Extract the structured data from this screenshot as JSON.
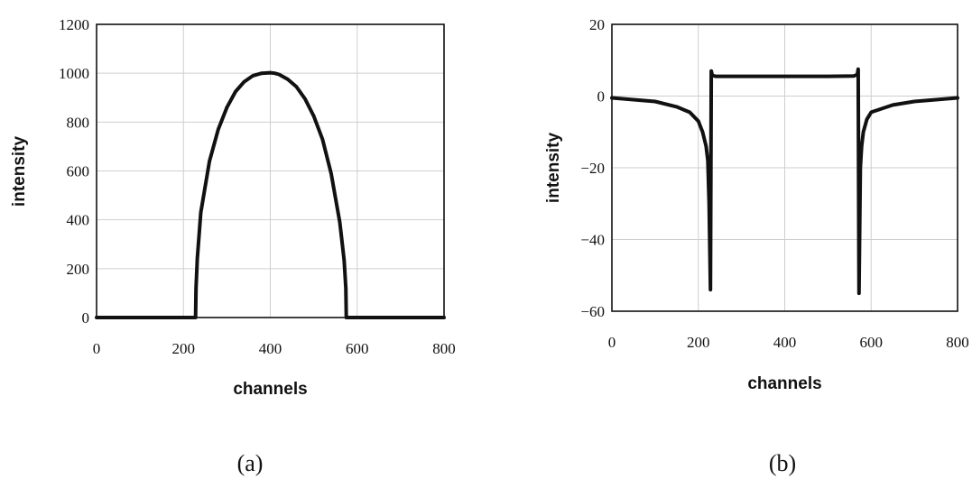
{
  "chart_data": [
    {
      "type": "line",
      "panel_label": "(a)",
      "xlabel": "channels",
      "ylabel": "intensity",
      "xlim": [
        0,
        800
      ],
      "ylim": [
        0,
        1200
      ],
      "xticks": [
        0,
        200,
        400,
        600,
        800
      ],
      "yticks": [
        0,
        200,
        400,
        600,
        800,
        1000,
        1200
      ],
      "grid": true,
      "series": [
        {
          "x": [
            0,
            100,
            200,
            228,
            229,
            232,
            240,
            260,
            280,
            300,
            320,
            340,
            360,
            380,
            400,
            410,
            420,
            440,
            460,
            480,
            500,
            520,
            540,
            560,
            570,
            574,
            575,
            600,
            700,
            800
          ],
          "y": [
            0,
            0,
            0,
            0,
            120,
            240,
            430,
            640,
            770,
            860,
            925,
            965,
            990,
            1000,
            1002,
            1000,
            995,
            975,
            945,
            895,
            825,
            730,
            590,
            390,
            235,
            120,
            0,
            0,
            0,
            0
          ]
        }
      ]
    },
    {
      "type": "line",
      "panel_label": "(b)",
      "xlabel": "channels",
      "ylabel": "intensity",
      "xlim": [
        0,
        800
      ],
      "ylim": [
        -60,
        20
      ],
      "xticks": [
        0,
        200,
        400,
        600,
        800
      ],
      "yticks": [
        -60,
        -40,
        -20,
        0,
        20
      ],
      "grid": true,
      "series": [
        {
          "x": [
            0,
            50,
            100,
            150,
            180,
            200,
            210,
            218,
            222,
            225,
            228,
            230,
            232,
            240,
            300,
            400,
            500,
            560,
            568,
            570,
            572,
            575,
            578,
            582,
            590,
            600,
            650,
            700,
            750,
            800
          ],
          "y": [
            -0.5,
            -1.0,
            -1.5,
            -3.0,
            -4.5,
            -7.0,
            -10.0,
            -14.0,
            -18.0,
            -30.0,
            -54.0,
            7.0,
            5.8,
            5.5,
            5.5,
            5.5,
            5.5,
            5.6,
            6.0,
            7.5,
            -55.0,
            -20.0,
            -14.0,
            -10.0,
            -6.5,
            -4.5,
            -2.5,
            -1.5,
            -1.0,
            -0.5
          ]
        }
      ]
    }
  ]
}
